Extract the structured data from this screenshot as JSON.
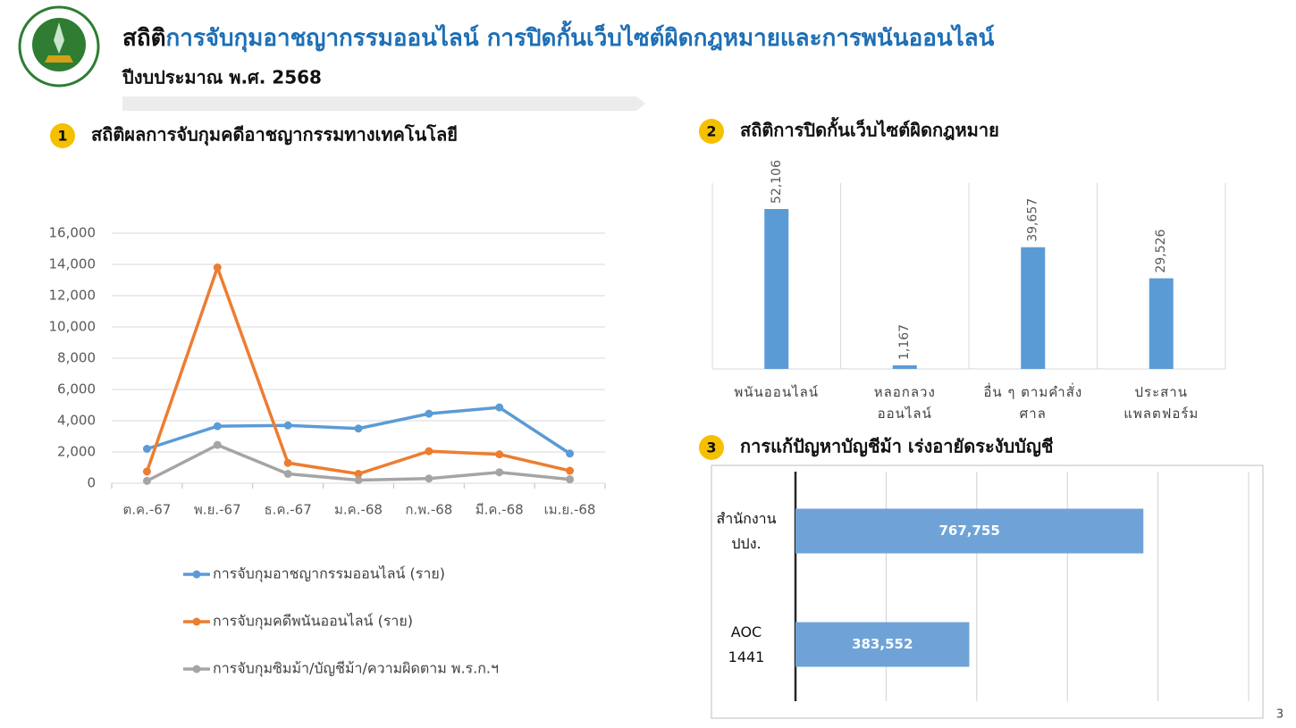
{
  "header": {
    "title_prefix": "สถิติ",
    "title_highlight": "การจับกุมอาชญากรรมออนไลน์ การปิดกั้นเว็บไซต์ผิดกฎหมายและการพนันออนไลน์",
    "subtitle": "ปีงบประมาณ พ.ศ. 2568"
  },
  "sections": [
    {
      "number": 1,
      "title": "สถิติผลการจับกุมคดีอาชญากรรมทางเทคโนโลยี"
    },
    {
      "number": 2,
      "title": "สถิติการปิดกั้นเว็บไซต์ผิดกฎหมาย"
    },
    {
      "number": 3,
      "title": "การแก้ปัญหาบัญชีม้า เร่งอายัดระงับบัญชี"
    }
  ],
  "page_number": 3,
  "chart_data": [
    {
      "type": "line",
      "categories": [
        "ต.ค.-67",
        "พ.ย.-67",
        "ธ.ค.-67",
        "ม.ค.-68",
        "ก.พ.-68",
        "มี.ค.-68",
        "เม.ย.-68"
      ],
      "series": [
        {
          "name": "การจับกุมอาชญากรรมออนไลน์ (ราย)",
          "color": "#5b9bd5",
          "values": [
            2200,
            3650,
            3700,
            3500,
            4450,
            4850,
            1900
          ]
        },
        {
          "name": "การจับกุมคดีพนันออนไลน์ (ราย)",
          "color": "#ed7d31",
          "values": [
            750,
            13800,
            1300,
            600,
            2050,
            1850,
            800
          ]
        },
        {
          "name": "การจับกุมซิมม้า/บัญชีม้า/ความผิดตาม พ.ร.ก.ฯ",
          "color": "#a5a5a5",
          "values": [
            150,
            2450,
            600,
            200,
            300,
            700,
            250
          ]
        }
      ],
      "ylim": [
        0,
        16000
      ],
      "yticks": [
        0,
        {
          "value": 2000,
          "label": "2,000"
        },
        {
          "value": 4000,
          "label": "4,000"
        },
        {
          "value": 6000,
          "label": "6,000"
        },
        {
          "value": 8000,
          "label": "8,000"
        },
        {
          "value": 10000,
          "label": "10,000"
        },
        {
          "value": 12000,
          "label": "12,000"
        },
        {
          "value": 14000,
          "label": "14,000"
        },
        {
          "value": 16000,
          "label": "16,000"
        }
      ],
      "grid": true
    },
    {
      "type": "bar",
      "categories": [
        "พนันออนไลน์",
        "หลอกลวง\nออนไลน์",
        "อื่น ๆ ตามคำสั่ง\nศาล",
        "ประสาน\nแพลตฟอร์ม"
      ],
      "values": [
        52106,
        1167,
        39657,
        29526
      ],
      "value_labels": [
        "52,106",
        "1,167",
        "39,657",
        "29,526"
      ],
      "color": "#5b9bd5"
    },
    {
      "type": "bar",
      "horizontal": true,
      "categories": [
        "สำนักงาน\nปปง.",
        "AOC\n1441"
      ],
      "values": [
        767755,
        383552
      ],
      "value_labels": [
        "767,755",
        "383,552"
      ],
      "color": "#6fa3d8",
      "xlim": [
        0,
        1000000
      ],
      "xticks": [
        0,
        200000,
        400000,
        600000,
        800000,
        1000000
      ],
      "grid": true
    }
  ]
}
